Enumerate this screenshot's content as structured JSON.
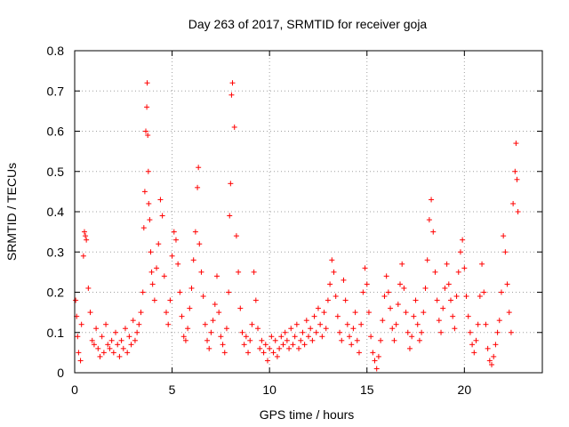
{
  "chart_data": {
    "type": "scatter",
    "title": "Day 263 of 2017, SRMTID for receiver goja",
    "xlabel": "GPS time / hours",
    "ylabel": "SRMTID / TECUs",
    "xlim": [
      0,
      24
    ],
    "ylim": [
      0,
      0.8
    ],
    "grid": true,
    "xticks": [
      0,
      5,
      10,
      15,
      20
    ],
    "xtick_labels": [
      "0",
      "5",
      "10",
      "15",
      "20"
    ],
    "yticks": [
      0,
      0.1,
      0.2,
      0.3,
      0.4,
      0.5,
      0.6,
      0.7,
      0.8
    ],
    "ytick_labels": [
      "0",
      "0.1",
      "0.2",
      "0.3",
      "0.4",
      "0.5",
      "0.6",
      "0.7",
      "0.8"
    ],
    "marker": "+",
    "color": "#ff0000",
    "series": [
      {
        "name": "SRMTID",
        "x": [
          0.05,
          0.1,
          0.15,
          0.2,
          0.3,
          0.35,
          0.45,
          0.5,
          0.55,
          0.6,
          0.7,
          0.8,
          0.9,
          1.0,
          1.1,
          1.2,
          1.3,
          1.4,
          1.5,
          1.6,
          1.7,
          1.8,
          1.9,
          2.0,
          2.1,
          2.2,
          2.3,
          2.4,
          2.5,
          2.6,
          2.7,
          2.8,
          2.9,
          3.0,
          3.1,
          3.2,
          3.3,
          3.4,
          3.5,
          3.55,
          3.6,
          3.65,
          3.7,
          3.72,
          3.75,
          3.78,
          3.8,
          3.85,
          3.9,
          3.95,
          4.0,
          4.1,
          4.2,
          4.3,
          4.4,
          4.5,
          4.6,
          4.7,
          4.8,
          4.9,
          5.0,
          5.1,
          5.2,
          5.3,
          5.4,
          5.5,
          5.6,
          5.7,
          5.8,
          5.9,
          6.0,
          6.1,
          6.2,
          6.3,
          6.35,
          6.4,
          6.5,
          6.6,
          6.7,
          6.8,
          6.9,
          7.0,
          7.1,
          7.2,
          7.3,
          7.4,
          7.5,
          7.6,
          7.7,
          7.8,
          7.9,
          7.95,
          8.0,
          8.05,
          8.1,
          8.2,
          8.3,
          8.4,
          8.5,
          8.6,
          8.7,
          8.8,
          8.9,
          9.0,
          9.1,
          9.2,
          9.3,
          9.4,
          9.5,
          9.6,
          9.7,
          9.8,
          9.9,
          10.0,
          10.1,
          10.2,
          10.3,
          10.4,
          10.5,
          10.6,
          10.7,
          10.8,
          10.9,
          11.0,
          11.1,
          11.2,
          11.3,
          11.4,
          11.5,
          11.6,
          11.7,
          11.8,
          11.9,
          12.0,
          12.1,
          12.2,
          12.3,
          12.4,
          12.5,
          12.6,
          12.7,
          12.8,
          12.9,
          13.0,
          13.1,
          13.2,
          13.3,
          13.4,
          13.5,
          13.6,
          13.7,
          13.8,
          13.9,
          14.0,
          14.1,
          14.2,
          14.3,
          14.4,
          14.5,
          14.6,
          14.7,
          14.8,
          14.9,
          15.0,
          15.1,
          15.2,
          15.3,
          15.4,
          15.5,
          15.6,
          15.7,
          15.8,
          15.9,
          16.0,
          16.1,
          16.2,
          16.3,
          16.4,
          16.5,
          16.6,
          16.7,
          16.8,
          16.9,
          17.0,
          17.1,
          17.2,
          17.3,
          17.4,
          17.5,
          17.6,
          17.7,
          17.8,
          17.9,
          18.0,
          18.1,
          18.2,
          18.3,
          18.4,
          18.5,
          18.6,
          18.7,
          18.8,
          18.9,
          19.0,
          19.1,
          19.2,
          19.3,
          19.4,
          19.5,
          19.6,
          19.7,
          19.8,
          19.9,
          20.0,
          20.1,
          20.2,
          20.3,
          20.4,
          20.5,
          20.6,
          20.7,
          20.8,
          20.9,
          21.0,
          21.1,
          21.2,
          21.3,
          21.4,
          21.5,
          21.6,
          21.7,
          21.8,
          21.9,
          22.0,
          22.1,
          22.2,
          22.3,
          22.4,
          22.5,
          22.6,
          22.65,
          22.7,
          22.75
        ],
        "y": [
          0.18,
          0.14,
          0.09,
          0.05,
          0.03,
          0.12,
          0.29,
          0.35,
          0.34,
          0.33,
          0.21,
          0.15,
          0.08,
          0.07,
          0.11,
          0.06,
          0.04,
          0.09,
          0.05,
          0.12,
          0.07,
          0.06,
          0.08,
          0.05,
          0.1,
          0.07,
          0.04,
          0.08,
          0.06,
          0.11,
          0.05,
          0.09,
          0.07,
          0.13,
          0.08,
          0.1,
          0.12,
          0.15,
          0.2,
          0.36,
          0.45,
          0.6,
          0.66,
          0.72,
          0.59,
          0.5,
          0.42,
          0.38,
          0.3,
          0.25,
          0.22,
          0.18,
          0.26,
          0.32,
          0.43,
          0.39,
          0.24,
          0.15,
          0.12,
          0.18,
          0.29,
          0.35,
          0.33,
          0.27,
          0.2,
          0.14,
          0.09,
          0.08,
          0.11,
          0.16,
          0.21,
          0.28,
          0.35,
          0.46,
          0.51,
          0.32,
          0.25,
          0.19,
          0.12,
          0.08,
          0.06,
          0.1,
          0.13,
          0.17,
          0.24,
          0.15,
          0.09,
          0.07,
          0.05,
          0.11,
          0.2,
          0.39,
          0.47,
          0.69,
          0.72,
          0.61,
          0.34,
          0.25,
          0.16,
          0.1,
          0.07,
          0.09,
          0.05,
          0.08,
          0.12,
          0.25,
          0.18,
          0.11,
          0.06,
          0.08,
          0.05,
          0.07,
          0.03,
          0.06,
          0.09,
          0.05,
          0.08,
          0.04,
          0.06,
          0.09,
          0.07,
          0.1,
          0.08,
          0.06,
          0.11,
          0.07,
          0.09,
          0.12,
          0.06,
          0.08,
          0.1,
          0.07,
          0.13,
          0.09,
          0.11,
          0.08,
          0.14,
          0.1,
          0.16,
          0.12,
          0.09,
          0.15,
          0.11,
          0.18,
          0.22,
          0.28,
          0.25,
          0.19,
          0.14,
          0.1,
          0.08,
          0.23,
          0.18,
          0.12,
          0.09,
          0.07,
          0.11,
          0.15,
          0.08,
          0.05,
          0.12,
          0.2,
          0.26,
          0.22,
          0.15,
          0.09,
          0.05,
          0.03,
          0.01,
          0.04,
          0.08,
          0.13,
          0.19,
          0.24,
          0.2,
          0.16,
          0.11,
          0.08,
          0.12,
          0.17,
          0.22,
          0.27,
          0.21,
          0.15,
          0.1,
          0.06,
          0.09,
          0.14,
          0.18,
          0.12,
          0.08,
          0.1,
          0.15,
          0.21,
          0.28,
          0.38,
          0.43,
          0.35,
          0.25,
          0.18,
          0.13,
          0.1,
          0.16,
          0.21,
          0.27,
          0.22,
          0.18,
          0.14,
          0.11,
          0.19,
          0.25,
          0.3,
          0.33,
          0.26,
          0.19,
          0.14,
          0.1,
          0.07,
          0.05,
          0.08,
          0.12,
          0.19,
          0.27,
          0.2,
          0.12,
          0.06,
          0.03,
          0.02,
          0.04,
          0.07,
          0.1,
          0.13,
          0.2,
          0.34,
          0.3,
          0.22,
          0.15,
          0.1,
          0.42,
          0.5,
          0.57,
          0.48,
          0.4
        ]
      }
    ]
  }
}
